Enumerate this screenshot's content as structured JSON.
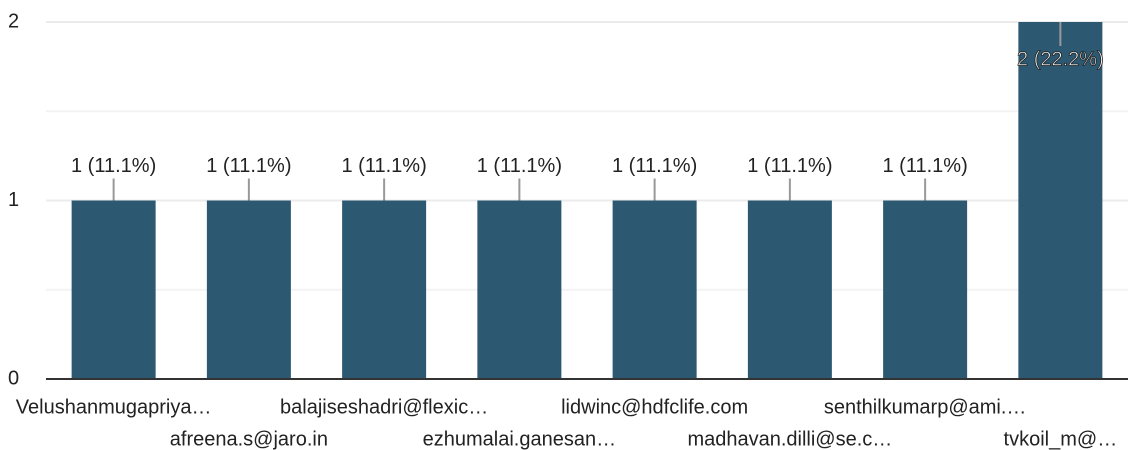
{
  "chart_data": {
    "type": "bar",
    "categories": [
      "Velushanmugapriya…",
      "afreena.s@jaro.in",
      "balajiseshadri@flexic…",
      "ezhumalai.ganesan…",
      "lidwinc@hdfclife.com",
      "madhavan.dilli@se.c…",
      "senthilkumarp@ami.…",
      "tvkoil_m@…"
    ],
    "values": [
      1,
      1,
      1,
      1,
      1,
      1,
      1,
      2
    ],
    "value_labels": [
      "1 (11.1%)",
      "1 (11.1%)",
      "1 (11.1%)",
      "1 (11.1%)",
      "1 (11.1%)",
      "1 (11.1%)",
      "1 (11.1%)",
      "2 (22.2%)"
    ],
    "color": "#2c5871",
    "ylim": [
      0,
      2
    ],
    "yticks": [
      0,
      1,
      2
    ],
    "grid": true
  }
}
